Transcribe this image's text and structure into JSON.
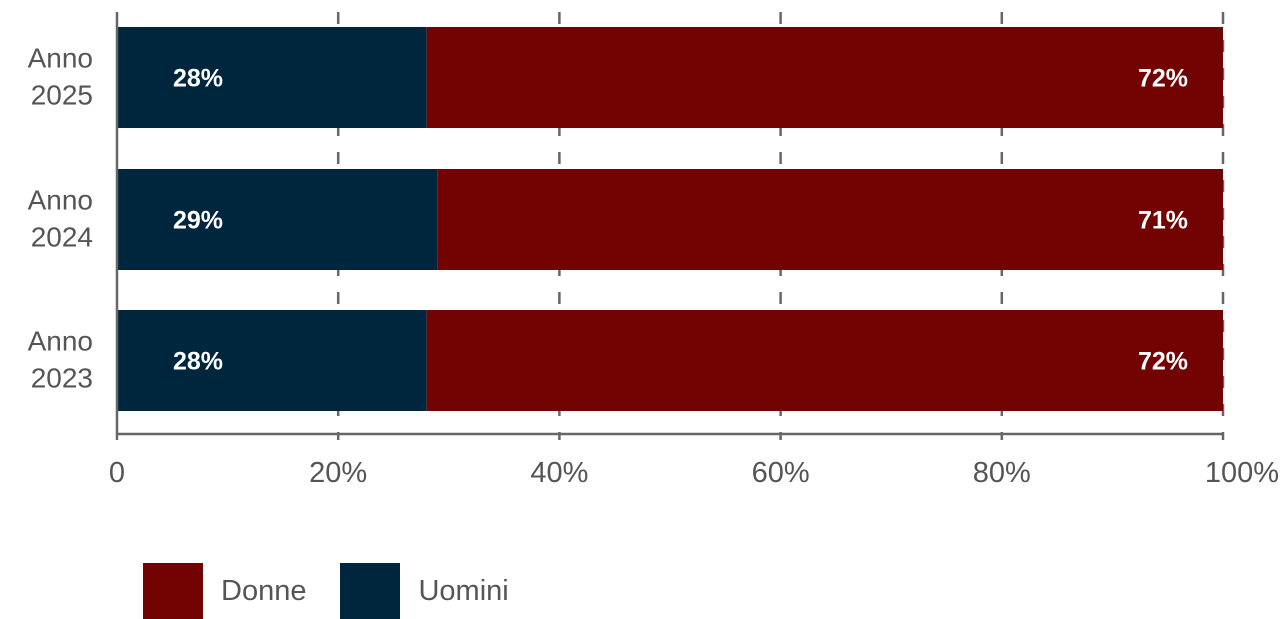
{
  "chart_data": {
    "type": "bar",
    "orientation": "horizontal",
    "stacked": true,
    "categories": [
      [
        "Anno",
        "2025"
      ],
      [
        "Anno",
        "2024"
      ],
      [
        "Anno",
        "2023"
      ]
    ],
    "series": [
      {
        "name": "Uomini",
        "color": "#00263e",
        "values": [
          28,
          29,
          28
        ],
        "labels": [
          "28%",
          "29%",
          "28%"
        ]
      },
      {
        "name": "Donne",
        "color": "#730303",
        "values": [
          72,
          71,
          72
        ],
        "labels": [
          "72%",
          "71%",
          "72%"
        ]
      }
    ],
    "xlim": [
      0,
      100
    ],
    "x_ticks": [
      0,
      20,
      40,
      60,
      80,
      100
    ],
    "x_tick_labels": [
      "0",
      "20%",
      "40%",
      "60%",
      "80%",
      "100%"
    ],
    "grid": "vertical dashed",
    "legend_position": "bottom-left",
    "legend": [
      {
        "label": "Donne",
        "color": "#730303"
      },
      {
        "label": "Uomini",
        "color": "#00263e"
      }
    ]
  }
}
